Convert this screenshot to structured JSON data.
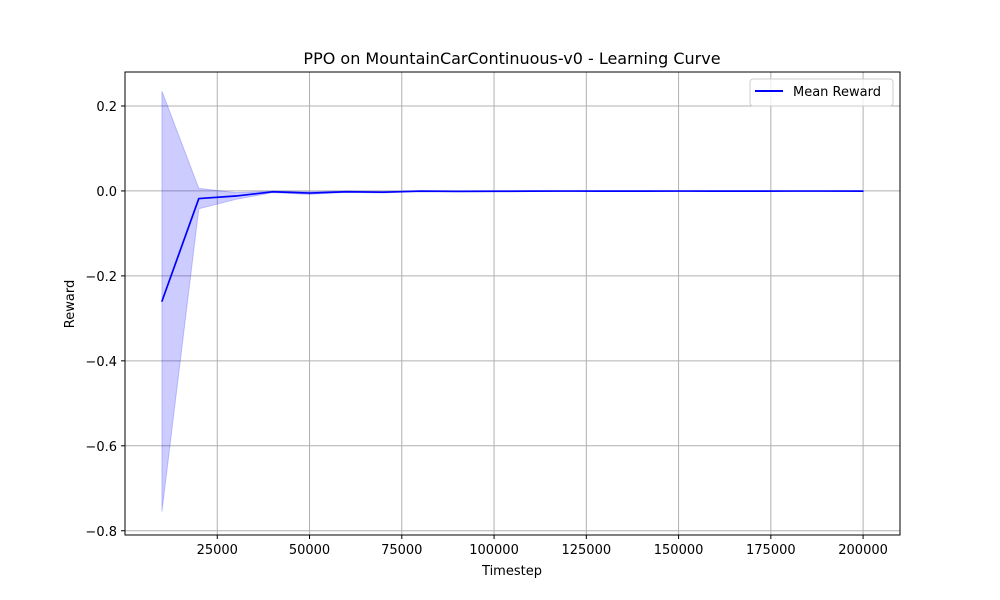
{
  "chart_data": {
    "type": "line",
    "title": "PPO on MountainCarContinuous-v0 - Learning Curve",
    "xlabel": "Timestep",
    "ylabel": "Reward",
    "xlim": [
      0,
      210000
    ],
    "ylim": [
      -0.81,
      0.28
    ],
    "x_ticks": [
      25000,
      50000,
      75000,
      100000,
      125000,
      150000,
      175000,
      200000
    ],
    "y_ticks": [
      0.2,
      0.0,
      -0.2,
      -0.4,
      -0.6,
      -0.8
    ],
    "y_tick_labels": [
      "0.2",
      "0.0",
      "−0.2",
      "−0.4",
      "−0.6",
      "−0.8"
    ],
    "grid": true,
    "legend_position": "top-right",
    "colors": {
      "line": "#0000ff",
      "band": "#0000ff"
    },
    "x": [
      10000,
      20000,
      30000,
      40000,
      50000,
      60000,
      70000,
      80000,
      90000,
      100000,
      110000,
      120000,
      130000,
      140000,
      150000,
      160000,
      170000,
      180000,
      190000,
      200000
    ],
    "series": [
      {
        "name": "Mean Reward",
        "values": [
          -0.26,
          -0.018,
          -0.012,
          -0.002,
          -0.005,
          -0.002,
          -0.003,
          -0.0005,
          -0.001,
          -0.0008,
          -0.0005,
          -0.0003,
          -0.0005,
          -0.0004,
          -0.0003,
          -0.0004,
          -0.0004,
          -0.0003,
          -0.0003,
          -0.0005
        ],
        "upper": [
          0.235,
          0.006,
          -0.004,
          -0.0005,
          -0.002,
          -0.0005,
          -0.001,
          -0.0002,
          -0.0004,
          -0.0003,
          -0.0002,
          -0.0001,
          -0.0002,
          -0.0002,
          -0.0001,
          -0.0002,
          -0.0002,
          -0.0001,
          -0.0001,
          -0.0002
        ],
        "lower": [
          -0.755,
          -0.042,
          -0.02,
          -0.004,
          -0.008,
          -0.0035,
          -0.005,
          -0.0008,
          -0.0016,
          -0.0013,
          -0.0008,
          -0.0005,
          -0.0008,
          -0.0006,
          -0.0005,
          -0.0006,
          -0.0006,
          -0.0005,
          -0.0005,
          -0.0008
        ]
      }
    ]
  }
}
